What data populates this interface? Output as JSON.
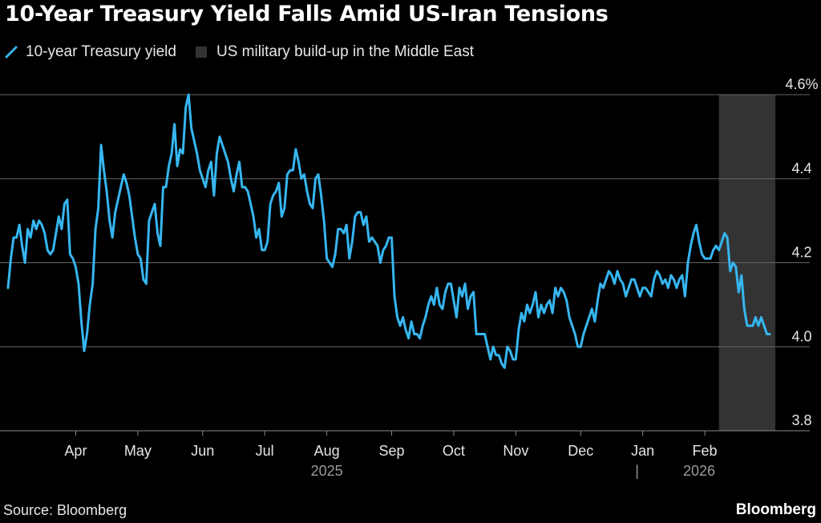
{
  "title": "10-Year Treasury Yield Falls Amid US-Iran Tensions",
  "legend": [
    {
      "label": "10-year Treasury yield",
      "color": "#36b6f0",
      "kind": "line"
    },
    {
      "label": "US military build-up in the Middle East",
      "color": "#333333",
      "kind": "box"
    }
  ],
  "source": "Source: Bloomberg",
  "brand": "Bloomberg",
  "chart_data": {
    "type": "line",
    "series": [
      {
        "name": "10-year Treasury yield",
        "color": "#36b6f0",
        "y": [
          4.14,
          4.21,
          4.26,
          4.26,
          4.29,
          4.24,
          4.2,
          4.28,
          4.26,
          4.3,
          4.28,
          4.3,
          4.29,
          4.27,
          4.23,
          4.22,
          4.23,
          4.27,
          4.31,
          4.28,
          4.34,
          4.35,
          4.22,
          4.21,
          4.19,
          4.15,
          4.06,
          3.99,
          4.03,
          4.1,
          4.15,
          4.28,
          4.33,
          4.48,
          4.42,
          4.37,
          4.3,
          4.26,
          4.32,
          4.35,
          4.38,
          4.41,
          4.39,
          4.36,
          4.31,
          4.26,
          4.22,
          4.21,
          4.16,
          4.15,
          4.3,
          4.32,
          4.34,
          4.27,
          4.24,
          4.38,
          4.38,
          4.43,
          4.46,
          4.53,
          4.43,
          4.47,
          4.46,
          4.57,
          4.6,
          4.52,
          4.49,
          4.46,
          4.42,
          4.4,
          4.38,
          4.42,
          4.44,
          4.36,
          4.46,
          4.5,
          4.48,
          4.46,
          4.44,
          4.4,
          4.37,
          4.41,
          4.44,
          4.38,
          4.38,
          4.37,
          4.34,
          4.31,
          4.26,
          4.28,
          4.23,
          4.23,
          4.25,
          4.34,
          4.36,
          4.37,
          4.39,
          4.31,
          4.33,
          4.41,
          4.42,
          4.42,
          4.47,
          4.44,
          4.4,
          4.41,
          4.37,
          4.34,
          4.33,
          4.4,
          4.41,
          4.36,
          4.3,
          4.21,
          4.2,
          4.19,
          4.22,
          4.28,
          4.28,
          4.27,
          4.29,
          4.21,
          4.25,
          4.31,
          4.32,
          4.32,
          4.29,
          4.31,
          4.25,
          4.26,
          4.25,
          4.24,
          4.2,
          4.23,
          4.24,
          4.26,
          4.26,
          4.12,
          4.07,
          4.05,
          4.07,
          4.04,
          4.02,
          4.06,
          4.03,
          4.03,
          4.02,
          4.05,
          4.07,
          4.1,
          4.12,
          4.1,
          4.14,
          4.1,
          4.09,
          4.13,
          4.15,
          4.15,
          4.11,
          4.07,
          4.14,
          4.12,
          4.15,
          4.09,
          4.12,
          4.13,
          4.03,
          4.03,
          4.03,
          4.03,
          4.0,
          3.97,
          4.0,
          3.98,
          3.98,
          3.96,
          3.95,
          4.0,
          3.99,
          3.97,
          3.97,
          4.04,
          4.08,
          4.06,
          4.1,
          4.08,
          4.1,
          4.13,
          4.07,
          4.1,
          4.08,
          4.1,
          4.11,
          4.08,
          4.14,
          4.12,
          4.14,
          4.13,
          4.11,
          4.07,
          4.05,
          4.03,
          4.0,
          4.0,
          4.03,
          4.05,
          4.07,
          4.09,
          4.06,
          4.11,
          4.15,
          4.14,
          4.16,
          4.18,
          4.17,
          4.15,
          4.18,
          4.16,
          4.15,
          4.12,
          4.14,
          4.16,
          4.16,
          4.14,
          4.12,
          4.14,
          4.14,
          4.13,
          4.12,
          4.16,
          4.18,
          4.17,
          4.15,
          4.16,
          4.14,
          4.17,
          4.16,
          4.14,
          4.16,
          4.17,
          4.12,
          4.2,
          4.24,
          4.27,
          4.29,
          4.25,
          4.22,
          4.21,
          4.21,
          4.21,
          4.23,
          4.24,
          4.23,
          4.25,
          4.27,
          4.26,
          4.18,
          4.2,
          4.19,
          4.13,
          4.17,
          4.09,
          4.05,
          4.05,
          4.05,
          4.07,
          4.05,
          4.07,
          4.05,
          4.03,
          4.03
        ]
      }
    ],
    "shaded_region": {
      "label": "US military build-up in the Middle East",
      "start_index": 252,
      "end_index": 272,
      "color": "#333333"
    },
    "x_tick_labels": [
      {
        "label": "Apr",
        "index": 24
      },
      {
        "label": "May",
        "index": 46
      },
      {
        "label": "Jun",
        "index": 69
      },
      {
        "label": "Jul",
        "index": 91
      },
      {
        "label": "Aug",
        "index": 113
      },
      {
        "label": "Sep",
        "index": 136
      },
      {
        "label": "Oct",
        "index": 158
      },
      {
        "label": "Nov",
        "index": 180
      },
      {
        "label": "Dec",
        "index": 203
      },
      {
        "label": "Jan",
        "index": 225
      },
      {
        "label": "Feb",
        "index": 247
      }
    ],
    "year_labels": [
      {
        "label": "2025",
        "index": 113
      },
      {
        "label": "|",
        "index": 223
      },
      {
        "label": "2026",
        "index": 245
      }
    ],
    "y_ticks": [
      {
        "value": 3.8,
        "label": "3.8"
      },
      {
        "value": 4.0,
        "label": "4.0"
      },
      {
        "value": 4.2,
        "label": "4.2"
      },
      {
        "value": 4.4,
        "label": "4.4"
      },
      {
        "value": 4.6,
        "label": "4.6%"
      }
    ],
    "ylim": [
      3.8,
      4.6
    ],
    "xlabel": "",
    "ylabel": "",
    "grid": true,
    "y_axis_position": "right"
  }
}
